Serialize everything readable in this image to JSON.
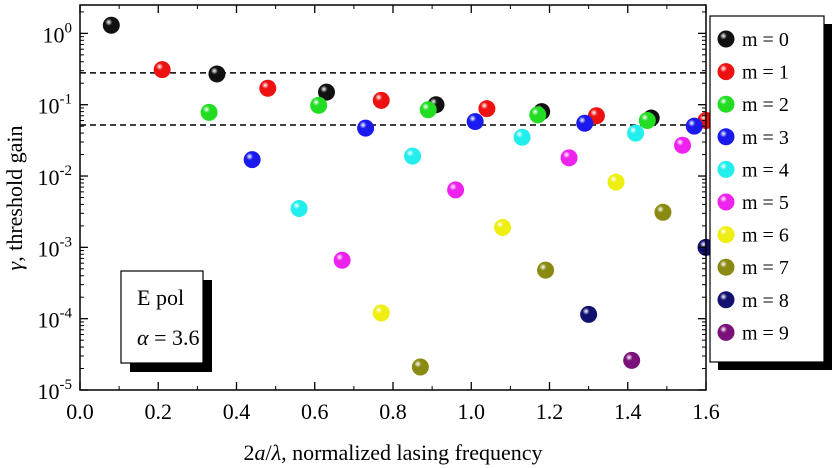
{
  "chart_data": {
    "type": "scatter",
    "xlabel_parts": [
      "2",
      "a",
      "/",
      "λ",
      ", normalized lasing frequency"
    ],
    "ylabel_parts": [
      "γ",
      ", threshold gain"
    ],
    "xlim": [
      0.0,
      1.6
    ],
    "ylim": [
      1e-05,
      2.5
    ],
    "y_scale": "log",
    "x_ticks": [
      0.0,
      0.2,
      0.4,
      0.6,
      0.8,
      1.0,
      1.2,
      1.4,
      1.6
    ],
    "x_tick_labels": [
      "0.0",
      "0.2",
      "0.4",
      "0.6",
      "0.8",
      "1.0",
      "1.2",
      "1.4",
      "1.6"
    ],
    "y_ticks": [
      {
        "value": 1,
        "base": "10",
        "exp": "0"
      },
      {
        "value": 0.1,
        "base": "10",
        "exp": "-1"
      },
      {
        "value": 0.01,
        "base": "10",
        "exp": "-2"
      },
      {
        "value": 0.001,
        "base": "10",
        "exp": "-3"
      },
      {
        "value": 0.0001,
        "base": "10",
        "exp": "-4"
      },
      {
        "value": 1e-05,
        "base": "10",
        "exp": "-5"
      }
    ],
    "reference_lines": [
      0.28,
      0.052
    ],
    "legend_position": "outside-right",
    "annotation": {
      "line1": "E pol",
      "line2_symbol": "α",
      "line2_rest": " = 3.6"
    },
    "series": [
      {
        "name": "m = 0",
        "color": "#111111",
        "points": [
          [
            0.08,
            1.3
          ],
          [
            0.35,
            0.27
          ],
          [
            0.63,
            0.15
          ],
          [
            0.91,
            0.1
          ],
          [
            1.18,
            0.08
          ],
          [
            1.46,
            0.065
          ]
        ]
      },
      {
        "name": "m = 1",
        "color": "#ee1111",
        "points": [
          [
            0.21,
            0.31
          ],
          [
            0.48,
            0.17
          ],
          [
            0.77,
            0.115
          ],
          [
            1.04,
            0.088
          ],
          [
            1.32,
            0.07
          ],
          [
            1.6,
            0.06
          ]
        ]
      },
      {
        "name": "m = 2",
        "color": "#22dd22",
        "points": [
          [
            0.33,
            0.078
          ],
          [
            0.61,
            0.098
          ],
          [
            0.89,
            0.085
          ],
          [
            1.17,
            0.072
          ],
          [
            1.45,
            0.06
          ]
        ]
      },
      {
        "name": "m = 3",
        "color": "#1a1aee",
        "points": [
          [
            0.44,
            0.017
          ],
          [
            0.73,
            0.047
          ],
          [
            1.01,
            0.058
          ],
          [
            1.29,
            0.055
          ],
          [
            1.57,
            0.05
          ]
        ]
      },
      {
        "name": "m = 4",
        "color": "#22eeee",
        "points": [
          [
            0.56,
            0.0035
          ],
          [
            0.85,
            0.019
          ],
          [
            1.13,
            0.035
          ],
          [
            1.42,
            0.04
          ]
        ]
      },
      {
        "name": "m = 5",
        "color": "#ee22ee",
        "points": [
          [
            0.67,
            0.00066
          ],
          [
            0.96,
            0.0064
          ],
          [
            1.25,
            0.018
          ],
          [
            1.54,
            0.027
          ]
        ]
      },
      {
        "name": "m = 6",
        "color": "#eeee11",
        "points": [
          [
            0.77,
            0.00012
          ],
          [
            1.08,
            0.0019
          ],
          [
            1.37,
            0.0082
          ]
        ]
      },
      {
        "name": "m = 7",
        "color": "#8a8a10",
        "points": [
          [
            0.87,
            2.1e-05
          ],
          [
            1.19,
            0.00048
          ],
          [
            1.49,
            0.0031
          ]
        ]
      },
      {
        "name": "m = 8",
        "color": "#10106e",
        "points": [
          [
            1.3,
            0.000115
          ],
          [
            1.6,
            0.001
          ]
        ]
      },
      {
        "name": "m = 9",
        "color": "#7a107a",
        "points": [
          [
            1.41,
            2.6e-05
          ]
        ]
      }
    ]
  }
}
